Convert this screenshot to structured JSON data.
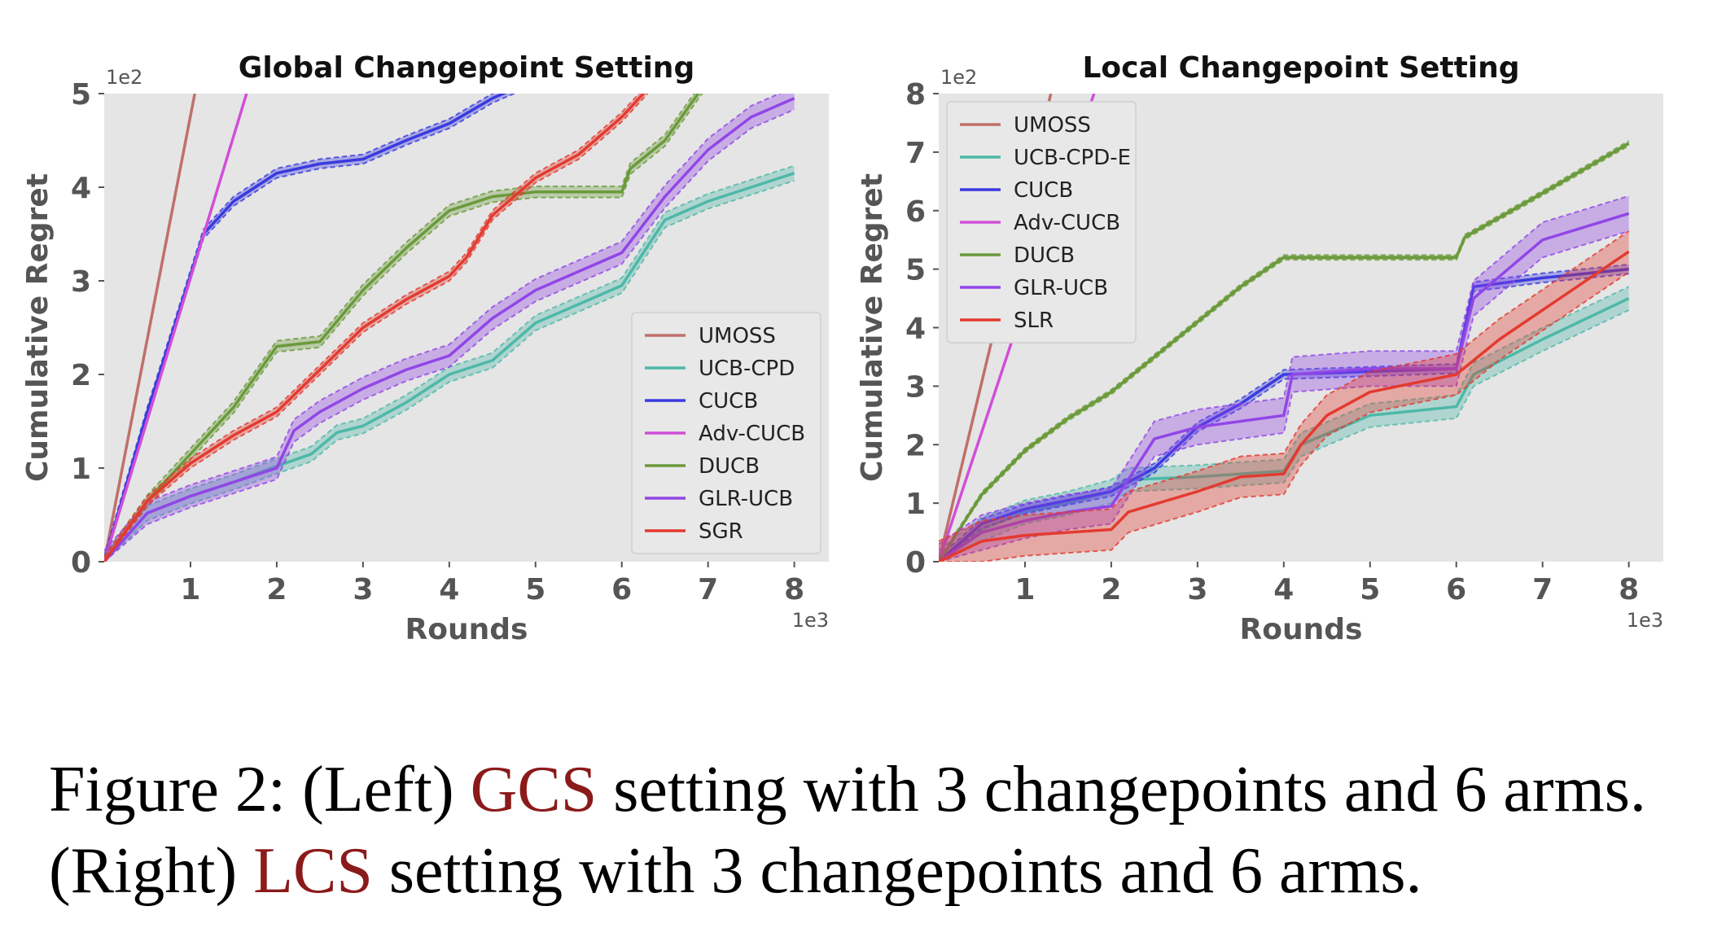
{
  "chart_data": [
    {
      "type": "line",
      "title": "Global Changepoint Setting",
      "xlabel": "Rounds",
      "ylabel": "Cumulative Regret",
      "x_offset_label": "1e3",
      "y_offset_label": "1e2",
      "xlim": [
        0,
        8.4
      ],
      "ylim": [
        0,
        5
      ],
      "xticks": [
        "1",
        "2",
        "3",
        "4",
        "5",
        "6",
        "7",
        "8"
      ],
      "yticks": [
        "0",
        "1",
        "2",
        "3",
        "4",
        "5"
      ],
      "legend_position": "lower-right",
      "series": [
        {
          "name": "UMOSS",
          "color": "#c0706a",
          "band": 0,
          "points": [
            [
              0,
              0
            ],
            [
              1.05,
              5.0
            ]
          ]
        },
        {
          "name": "UCB-CPD",
          "color": "#4db8a8",
          "band": 0.08,
          "points": [
            [
              0,
              0
            ],
            [
              0.5,
              0.52
            ],
            [
              1,
              0.7
            ],
            [
              1.5,
              0.85
            ],
            [
              2,
              1.02
            ],
            [
              2.4,
              1.15
            ],
            [
              2.7,
              1.38
            ],
            [
              3.0,
              1.45
            ],
            [
              3.5,
              1.7
            ],
            [
              4,
              2.0
            ],
            [
              4.5,
              2.15
            ],
            [
              5,
              2.55
            ],
            [
              5.5,
              2.75
            ],
            [
              6,
              2.95
            ],
            [
              6.5,
              3.65
            ],
            [
              7,
              3.85
            ],
            [
              7.5,
              4.0
            ],
            [
              8,
              4.15
            ]
          ]
        },
        {
          "name": "CUCB",
          "color": "#3a3adf",
          "band": 0.05,
          "points": [
            [
              0,
              0
            ],
            [
              0.5,
              1.6
            ],
            [
              1.15,
              3.5
            ],
            [
              1.5,
              3.85
            ],
            [
              2,
              4.15
            ],
            [
              2.5,
              4.25
            ],
            [
              3,
              4.3
            ],
            [
              3.5,
              4.5
            ],
            [
              4,
              4.68
            ],
            [
              4.5,
              4.95
            ],
            [
              5,
              5.15
            ]
          ]
        },
        {
          "name": "Adv-CUCB",
          "color": "#d04fd8",
          "band": 0,
          "points": [
            [
              0,
              0
            ],
            [
              1.65,
              5.0
            ]
          ]
        },
        {
          "name": "DUCB",
          "color": "#6a9a3a",
          "band": 0.06,
          "points": [
            [
              0,
              0
            ],
            [
              0.5,
              0.65
            ],
            [
              1,
              1.15
            ],
            [
              1.5,
              1.65
            ],
            [
              2,
              2.3
            ],
            [
              2.5,
              2.35
            ],
            [
              3,
              2.9
            ],
            [
              3.5,
              3.35
            ],
            [
              4,
              3.75
            ],
            [
              4.5,
              3.9
            ],
            [
              5,
              3.95
            ],
            [
              5.5,
              3.95
            ],
            [
              6,
              3.95
            ],
            [
              6.1,
              4.2
            ],
            [
              6.5,
              4.5
            ],
            [
              7,
              5.15
            ]
          ]
        },
        {
          "name": "GLR-UCB",
          "color": "#9146e6",
          "band": 0.12,
          "points": [
            [
              0,
              0
            ],
            [
              0.5,
              0.52
            ],
            [
              1,
              0.7
            ],
            [
              1.5,
              0.85
            ],
            [
              2,
              1.0
            ],
            [
              2.2,
              1.4
            ],
            [
              2.5,
              1.6
            ],
            [
              3,
              1.85
            ],
            [
              3.5,
              2.05
            ],
            [
              4,
              2.2
            ],
            [
              4.5,
              2.6
            ],
            [
              5,
              2.9
            ],
            [
              5.5,
              3.1
            ],
            [
              6,
              3.3
            ],
            [
              6.5,
              3.9
            ],
            [
              7,
              4.4
            ],
            [
              7.5,
              4.75
            ],
            [
              8,
              4.95
            ]
          ]
        },
        {
          "name": "SGR",
          "color": "#e33a2f",
          "band": 0.05,
          "points": [
            [
              0,
              0
            ],
            [
              0.5,
              0.65
            ],
            [
              1,
              1.05
            ],
            [
              1.5,
              1.35
            ],
            [
              2,
              1.6
            ],
            [
              2.5,
              2.05
            ],
            [
              3,
              2.5
            ],
            [
              3.5,
              2.8
            ],
            [
              4,
              3.05
            ],
            [
              4.2,
              3.25
            ],
            [
              4.5,
              3.7
            ],
            [
              5,
              4.1
            ],
            [
              5.5,
              4.35
            ],
            [
              6,
              4.75
            ],
            [
              6.3,
              5.05
            ]
          ]
        }
      ]
    },
    {
      "type": "line",
      "title": "Local Changepoint Setting",
      "xlabel": "Rounds",
      "ylabel": "Cumulative Regret",
      "x_offset_label": "1e3",
      "y_offset_label": "1e2",
      "xlim": [
        0,
        8.4
      ],
      "ylim": [
        0,
        8
      ],
      "xticks": [
        "1",
        "2",
        "3",
        "4",
        "5",
        "6",
        "7",
        "8"
      ],
      "yticks": [
        "0",
        "1",
        "2",
        "3",
        "4",
        "5",
        "6",
        "7",
        "8"
      ],
      "legend_position": "top-left",
      "series": [
        {
          "name": "UMOSS",
          "color": "#c0706a",
          "band": 0,
          "points": [
            [
              0,
              0
            ],
            [
              1.3,
              8.0
            ]
          ]
        },
        {
          "name": "UCB-CPD-E",
          "color": "#4db8a8",
          "band": 0.2,
          "points": [
            [
              0,
              0
            ],
            [
              0.5,
              0.55
            ],
            [
              1,
              0.85
            ],
            [
              1.5,
              1.0
            ],
            [
              2,
              1.2
            ],
            [
              2.2,
              1.4
            ],
            [
              3,
              1.45
            ],
            [
              4,
              1.55
            ],
            [
              4.2,
              2.0
            ],
            [
              5,
              2.5
            ],
            [
              6,
              2.65
            ],
            [
              6.2,
              3.2
            ],
            [
              7,
              3.8
            ],
            [
              8,
              4.5
            ]
          ]
        },
        {
          "name": "CUCB",
          "color": "#3a3adf",
          "band": 0.08,
          "points": [
            [
              0,
              0
            ],
            [
              0.5,
              0.65
            ],
            [
              1,
              0.9
            ],
            [
              1.5,
              1.05
            ],
            [
              2,
              1.2
            ],
            [
              2.5,
              1.6
            ],
            [
              3,
              2.3
            ],
            [
              3.5,
              2.7
            ],
            [
              4,
              3.2
            ],
            [
              5,
              3.25
            ],
            [
              6,
              3.3
            ],
            [
              6.2,
              4.7
            ],
            [
              7,
              4.85
            ],
            [
              8,
              5.0
            ]
          ]
        },
        {
          "name": "Adv-CUCB",
          "color": "#d04fd8",
          "band": 0,
          "points": [
            [
              0,
              0
            ],
            [
              1.8,
              8.0
            ]
          ]
        },
        {
          "name": "DUCB",
          "color": "#6a9a3a",
          "band": 0.04,
          "points": [
            [
              0,
              0
            ],
            [
              0.5,
              1.15
            ],
            [
              1,
              1.9
            ],
            [
              1.5,
              2.45
            ],
            [
              2,
              2.9
            ],
            [
              2.5,
              3.5
            ],
            [
              3,
              4.1
            ],
            [
              3.5,
              4.7
            ],
            [
              4,
              5.2
            ],
            [
              5,
              5.2
            ],
            [
              6,
              5.2
            ],
            [
              6.1,
              5.55
            ],
            [
              7,
              6.3
            ],
            [
              8,
              7.15
            ]
          ]
        },
        {
          "name": "GLR-UCB",
          "color": "#9146e6",
          "band": 0.3,
          "points": [
            [
              0,
              0
            ],
            [
              0.5,
              0.5
            ],
            [
              1,
              0.7
            ],
            [
              1.5,
              0.85
            ],
            [
              2,
              0.95
            ],
            [
              2.5,
              2.1
            ],
            [
              3,
              2.3
            ],
            [
              4,
              2.5
            ],
            [
              4.1,
              3.2
            ],
            [
              5,
              3.3
            ],
            [
              6,
              3.3
            ],
            [
              6.2,
              4.5
            ],
            [
              7,
              5.5
            ],
            [
              8,
              5.95
            ]
          ]
        },
        {
          "name": "SLR",
          "color": "#e33a2f",
          "band": 0.35,
          "points": [
            [
              0,
              0
            ],
            [
              0.5,
              0.35
            ],
            [
              1,
              0.45
            ],
            [
              1.5,
              0.5
            ],
            [
              2,
              0.55
            ],
            [
              2.2,
              0.85
            ],
            [
              3,
              1.2
            ],
            [
              3.5,
              1.45
            ],
            [
              4,
              1.5
            ],
            [
              4.2,
              2.0
            ],
            [
              4.5,
              2.5
            ],
            [
              5,
              2.9
            ],
            [
              6,
              3.2
            ],
            [
              6.5,
              3.8
            ],
            [
              7,
              4.3
            ],
            [
              8,
              5.3
            ]
          ]
        }
      ]
    }
  ],
  "caption": {
    "line1_part1": "Figure 2: (Left) ",
    "line1_highlight": "GCS",
    "line1_part2": " setting with 3 changepoints and 6 arms.",
    "line2_part1": "(Right) ",
    "line2_highlight": "LCS",
    "line2_part2": " setting with 3 changepoints and 6 arms."
  }
}
